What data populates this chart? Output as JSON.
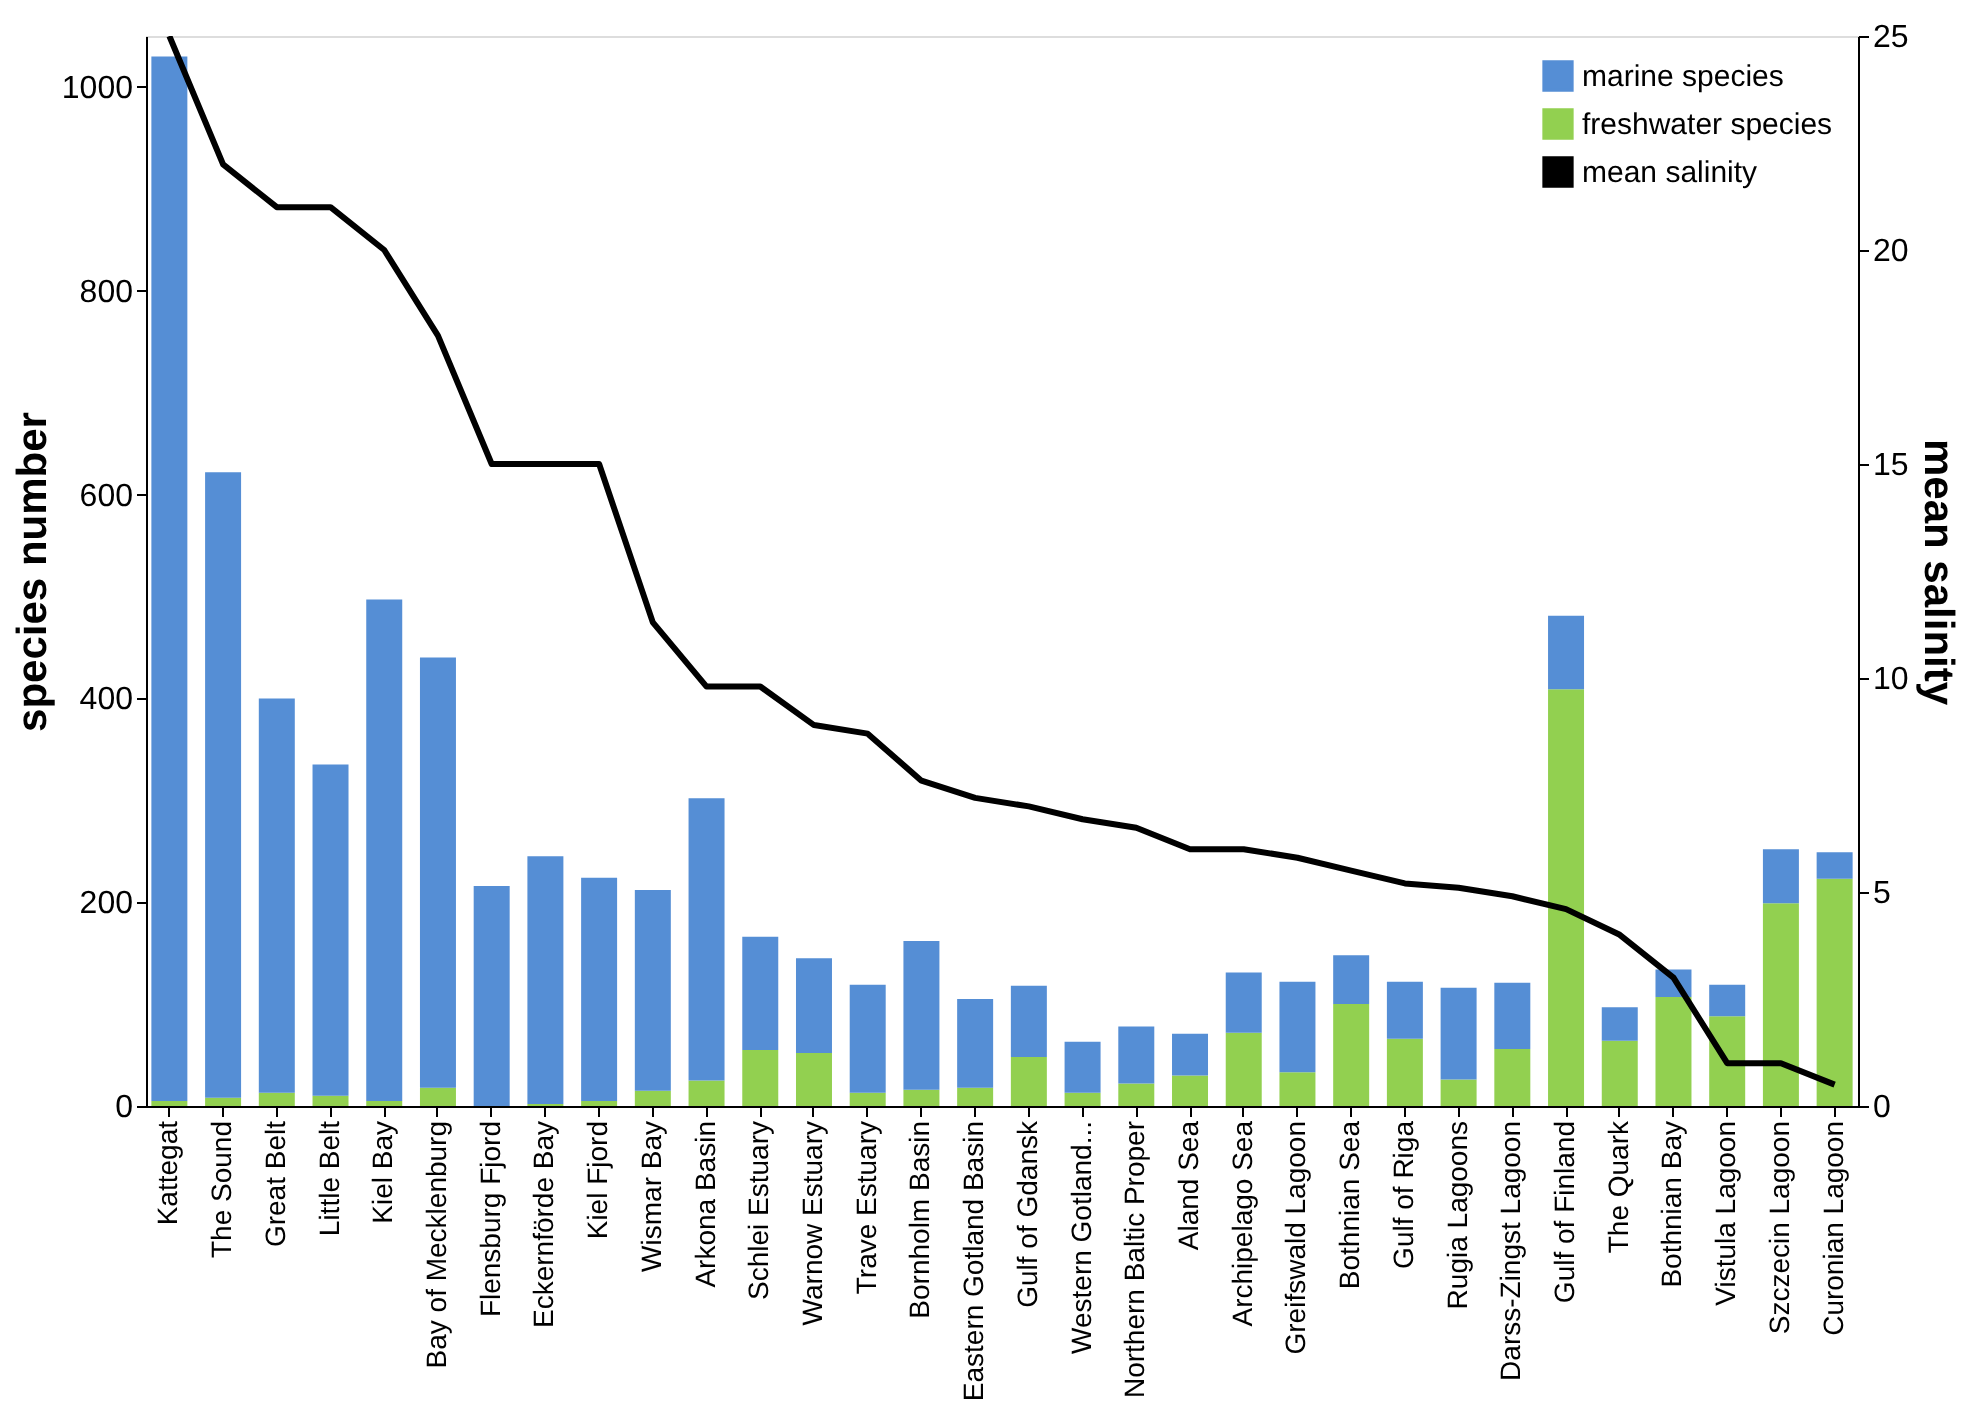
{
  "chart_data": {
    "type": "bar",
    "stacked": true,
    "categories": [
      "Kattegat",
      "The Sound",
      "Great Belt",
      "Little Belt",
      "Kiel Bay",
      "Bay of Mecklenburg",
      "Flensburg Fjord",
      "Eckernförde Bay",
      "Kiel Fjord",
      "Wismar Bay",
      "Arkona Basin",
      "Schlei Estuary",
      "Warnow Estuary",
      "Trave Estuary",
      "Bornholm Basin",
      "Eastern Gotland Basin",
      "Gulf of Gdansk",
      "Western Gotland...",
      "Northern Baltic Proper",
      "Aland Sea",
      "Archipelago Sea",
      "Greifswald Lagoon",
      "Bothnian Sea",
      "Gulf of Riga",
      "Rugia Lagoons",
      "Darss-Zingst Lagoon",
      "Gulf of Finland",
      "The Quark",
      "Bothnian Bay",
      "Vistula Lagoon",
      "Szczecin Lagoon",
      "Curonian Lagoon"
    ],
    "series": [
      {
        "name": "freshwater species",
        "color": "#92d050",
        "values": [
          5,
          8,
          13,
          10,
          5,
          18,
          0,
          2,
          5,
          15,
          25,
          55,
          52,
          13,
          16,
          18,
          48,
          13,
          22,
          30,
          72,
          33,
          100,
          66,
          26,
          56,
          409,
          64,
          107,
          88,
          199,
          223
        ]
      },
      {
        "name": "marine species",
        "color": "#558ed5",
        "values": [
          1025,
          614,
          387,
          325,
          492,
          422,
          216,
          243,
          219,
          197,
          277,
          111,
          93,
          106,
          146,
          87,
          70,
          50,
          56,
          41,
          59,
          89,
          48,
          56,
          90,
          65,
          72,
          33,
          27,
          31,
          53,
          26
        ]
      },
      {
        "name": "mean salinity",
        "type": "line",
        "axis": "y2",
        "color": "#000000",
        "values": [
          25,
          22,
          21,
          21,
          20,
          18,
          15,
          15,
          15,
          11.3,
          9.8,
          9.8,
          8.9,
          8.7,
          7.6,
          7.2,
          7.0,
          6.7,
          6.5,
          6.0,
          6.0,
          5.8,
          5.5,
          5.2,
          5.1,
          4.9,
          4.6,
          4.0,
          3.0,
          1.0,
          1.0,
          0.5
        ]
      }
    ],
    "ylabel": "species number",
    "y2label": "mean salinity",
    "ylim": [
      0,
      1050
    ],
    "yticks": [
      0,
      200,
      400,
      600,
      800,
      1000
    ],
    "y2lim": [
      0,
      25
    ],
    "y2ticks": [
      0,
      5,
      10,
      15,
      20,
      25
    ],
    "legend": "top right",
    "grid": false
  }
}
